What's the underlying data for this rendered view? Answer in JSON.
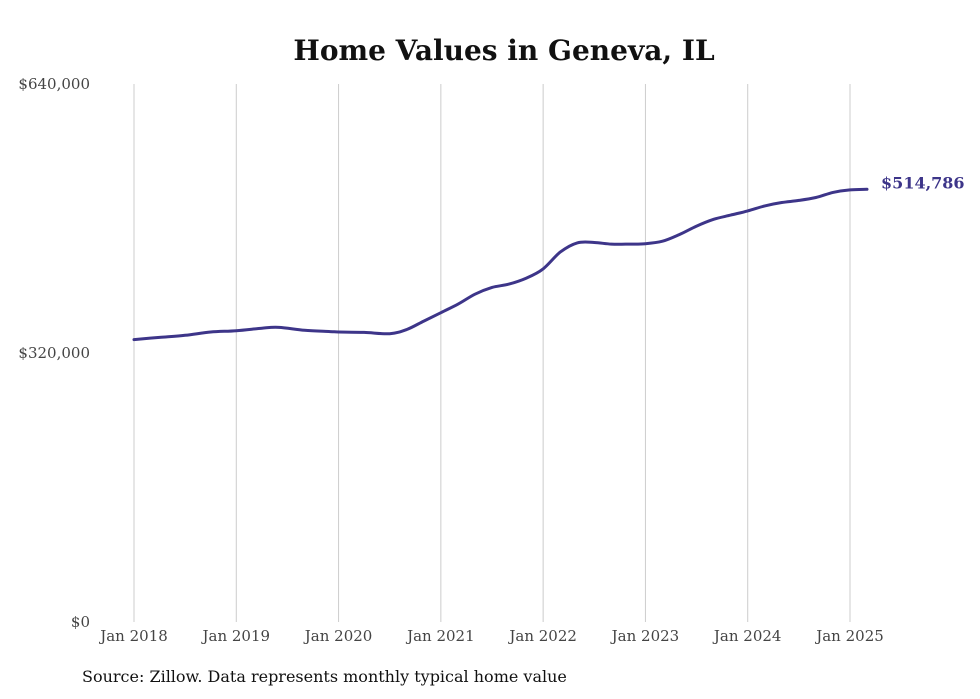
{
  "source_note": "Source: Zillow. Data represents monthly typical home value",
  "colors": {
    "line": "#3d3589",
    "grid": "#cccccc",
    "text": "#444444"
  },
  "chart_data": {
    "type": "line",
    "title": "Home Values in Geneva, IL",
    "xlabel": "",
    "ylabel": "",
    "ylim": [
      0,
      640000
    ],
    "y_ticks": [
      0,
      320000,
      640000
    ],
    "y_tick_labels": [
      "$0",
      "$320,000",
      "$640,000"
    ],
    "x_ticks": [
      "2018-01",
      "2019-01",
      "2020-01",
      "2021-01",
      "2022-01",
      "2023-01",
      "2024-01",
      "2025-01"
    ],
    "x_tick_labels": [
      "Jan 2018",
      "Jan 2019",
      "Jan 2020",
      "Jan 2021",
      "Jan 2022",
      "Jan 2023",
      "Jan 2024",
      "Jan 2025"
    ],
    "grid": {
      "vertical": true,
      "horizontal": false
    },
    "end_label": "$514,786",
    "series": [
      {
        "points": [
          [
            "2018-01",
            336000
          ],
          [
            "2018-04",
            338500
          ],
          [
            "2018-07",
            341000
          ],
          [
            "2018-10",
            345000
          ],
          [
            "2019-01",
            346500
          ],
          [
            "2019-04",
            349500
          ],
          [
            "2019-06",
            350500
          ],
          [
            "2019-09",
            347000
          ],
          [
            "2019-12",
            345500
          ],
          [
            "2020-01",
            345000
          ],
          [
            "2020-04",
            344500
          ],
          [
            "2020-07",
            343000
          ],
          [
            "2020-09",
            348000
          ],
          [
            "2020-11",
            358000
          ],
          [
            "2021-01",
            368000
          ],
          [
            "2021-03",
            378000
          ],
          [
            "2021-05",
            390000
          ],
          [
            "2021-07",
            398000
          ],
          [
            "2021-09",
            402000
          ],
          [
            "2021-11",
            409000
          ],
          [
            "2022-01",
            420000
          ],
          [
            "2022-03",
            440000
          ],
          [
            "2022-05",
            451000
          ],
          [
            "2022-07",
            451500
          ],
          [
            "2022-09",
            449500
          ],
          [
            "2022-11",
            449500
          ],
          [
            "2023-01",
            450000
          ],
          [
            "2023-03",
            453000
          ],
          [
            "2023-05",
            461000
          ],
          [
            "2023-07",
            471000
          ],
          [
            "2023-09",
            479000
          ],
          [
            "2023-11",
            484000
          ],
          [
            "2024-01",
            489000
          ],
          [
            "2024-03",
            495000
          ],
          [
            "2024-05",
            499000
          ],
          [
            "2024-07",
            501500
          ],
          [
            "2024-09",
            505000
          ],
          [
            "2024-11",
            511000
          ],
          [
            "2025-01",
            514000
          ],
          [
            "2025-03",
            514786
          ]
        ]
      }
    ]
  }
}
